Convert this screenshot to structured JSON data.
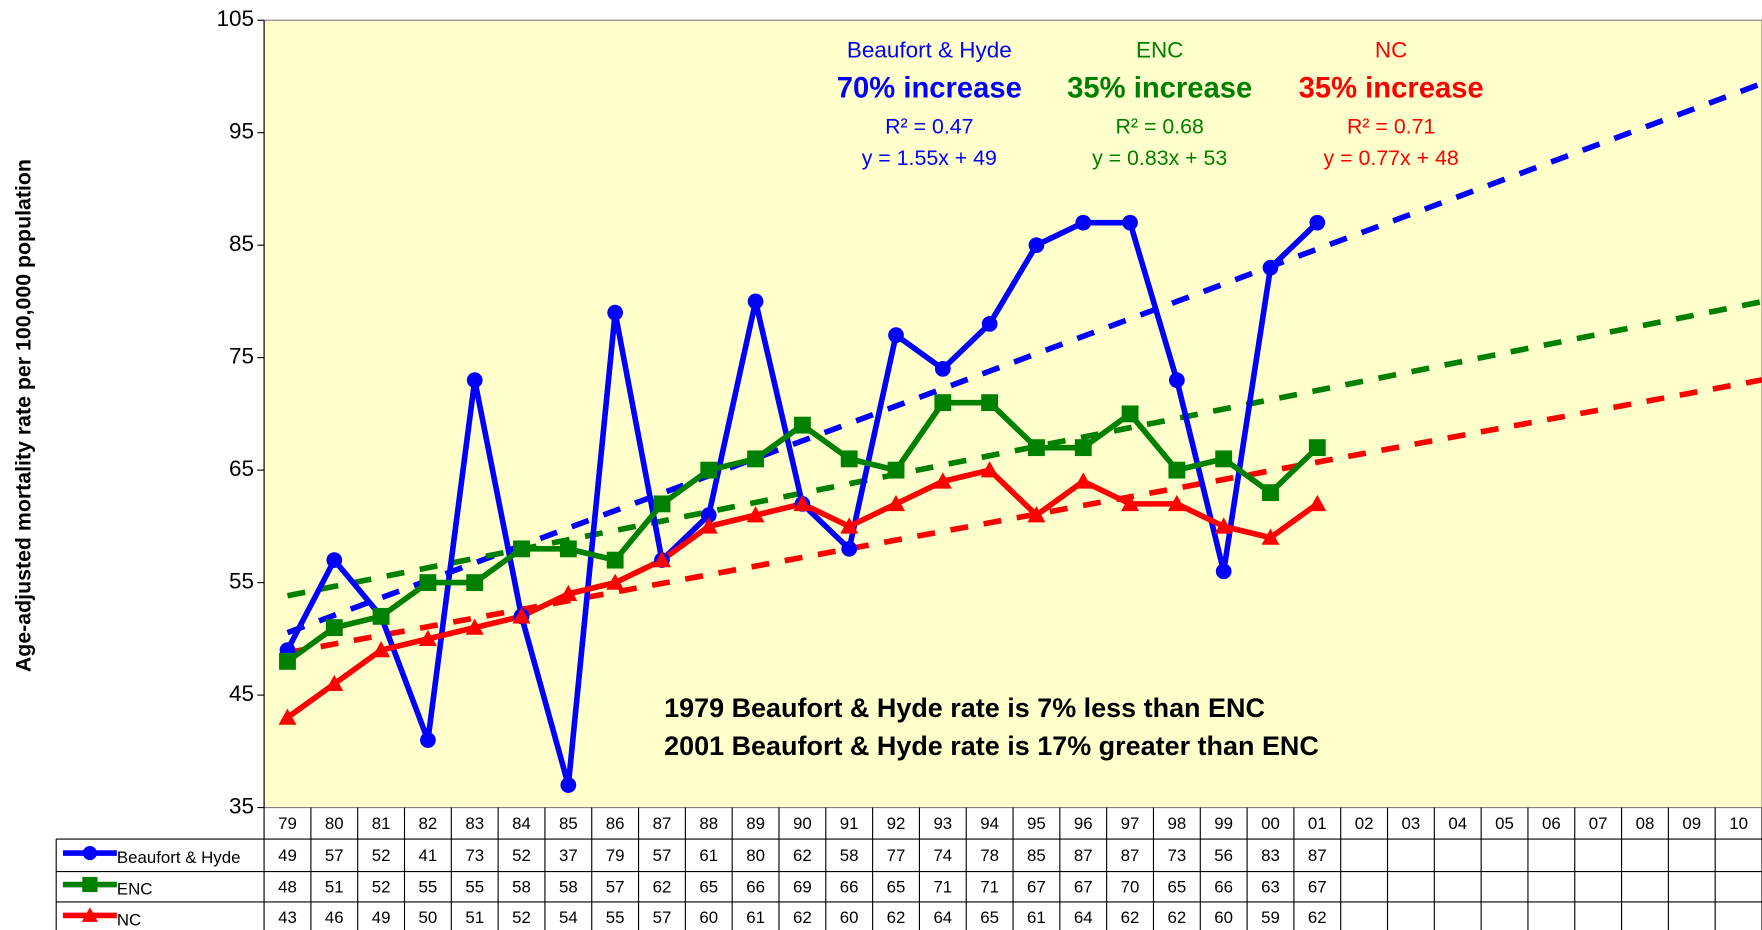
{
  "chart_data": {
    "type": "line",
    "ylabel": "Age-adjusted mortality rate per 100,000 population",
    "categories": [
      "79",
      "80",
      "81",
      "82",
      "83",
      "84",
      "85",
      "86",
      "87",
      "88",
      "89",
      "90",
      "91",
      "92",
      "93",
      "94",
      "95",
      "96",
      "97",
      "98",
      "99",
      "00",
      "01",
      "02",
      "03",
      "04",
      "05",
      "06",
      "07",
      "08",
      "09",
      "10"
    ],
    "ylim": [
      35,
      105
    ],
    "yticks": [
      35,
      45,
      55,
      65,
      75,
      85,
      95,
      105
    ],
    "series": [
      {
        "name": "Beaufort & Hyde",
        "color": "#0000ff",
        "marker": "circle",
        "values": [
          49,
          57,
          52,
          41,
          73,
          52,
          37,
          79,
          57,
          61,
          80,
          62,
          58,
          77,
          74,
          78,
          85,
          87,
          87,
          73,
          56,
          83,
          87,
          null,
          null,
          null,
          null,
          null,
          null,
          null,
          null,
          null
        ],
        "trend": {
          "slope": 1.55,
          "intercept": 49
        },
        "annotation": {
          "change": "70% increase",
          "r2": "R² = 0.47",
          "equation": "y = 1.55x + 49"
        }
      },
      {
        "name": "ENC",
        "color": "#008000",
        "marker": "square",
        "values": [
          48,
          51,
          52,
          55,
          55,
          58,
          58,
          57,
          62,
          65,
          66,
          69,
          66,
          65,
          71,
          71,
          67,
          67,
          70,
          65,
          66,
          63,
          67,
          null,
          null,
          null,
          null,
          null,
          null,
          null,
          null,
          null
        ],
        "trend": {
          "slope": 0.83,
          "intercept": 53
        },
        "annotation": {
          "change": "35% increase",
          "r2": "R² = 0.68",
          "equation": "y = 0.83x + 53"
        }
      },
      {
        "name": "NC",
        "color": "#ff0000",
        "marker": "triangle",
        "values": [
          43,
          46,
          49,
          50,
          51,
          52,
          54,
          55,
          57,
          60,
          61,
          62,
          60,
          62,
          64,
          65,
          61,
          64,
          62,
          62,
          60,
          59,
          62,
          null,
          null,
          null,
          null,
          null,
          null,
          null,
          null,
          null
        ],
        "trend": {
          "slope": 0.77,
          "intercept": 48
        },
        "annotation": {
          "change": "35% increase",
          "r2": "R² = 0.71",
          "equation": "y = 0.77x + 48"
        }
      }
    ],
    "notes": [
      "1979 Beaufort & Hyde rate is 7% less than ENC",
      "2001 Beaufort & Hyde rate is 17% greater than ENC"
    ],
    "data_table": true
  }
}
